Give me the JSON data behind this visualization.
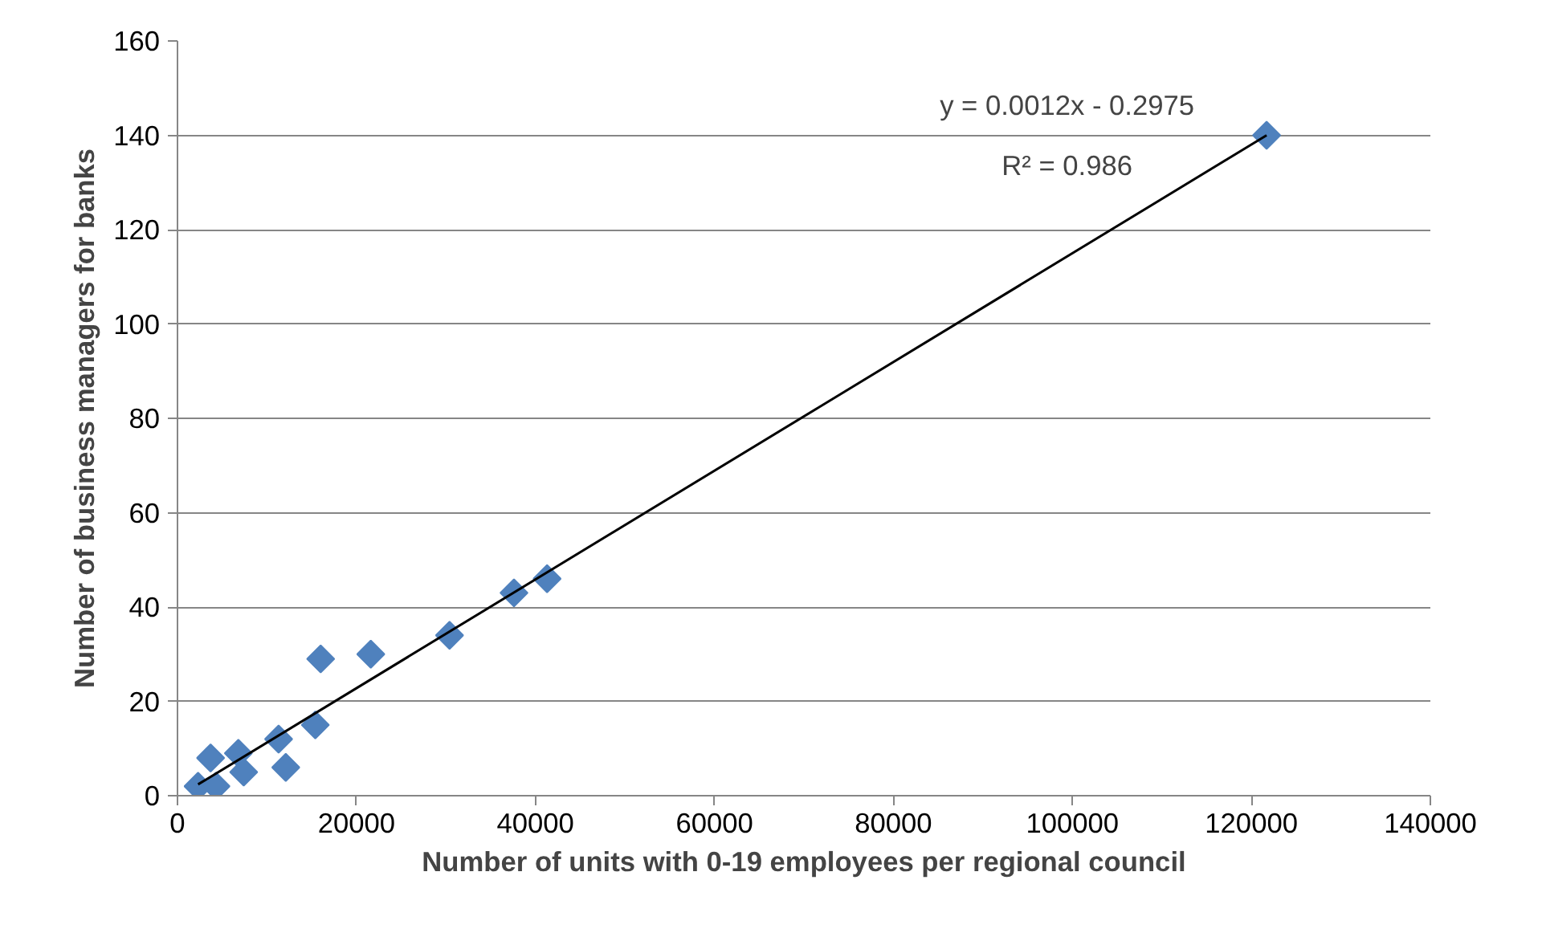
{
  "chart_data": {
    "type": "scatter",
    "xlabel": "Number of units with 0-19 employees per regional council",
    "ylabel": "Number of business managers for banks",
    "xlim": [
      0,
      140000
    ],
    "ylim": [
      0,
      160
    ],
    "xticks": [
      0,
      20000,
      40000,
      60000,
      80000,
      100000,
      120000,
      140000
    ],
    "yticks": [
      0,
      20,
      40,
      60,
      80,
      100,
      120,
      140,
      160
    ],
    "grid": "y",
    "series": [
      {
        "marker": "diamond",
        "color": "#4f81bd",
        "x": [
          2300,
          4300,
          3700,
          6800,
          7400,
          11300,
          12100,
          15400,
          16000,
          21600,
          30400,
          37600,
          41300,
          121700
        ],
        "values": [
          2,
          2,
          8,
          9,
          5,
          12,
          6,
          15,
          29,
          30,
          34,
          43,
          46,
          140
        ]
      },
      {
        "type": "line",
        "marker": "none",
        "color": "#000000",
        "x": [
          2300,
          121700
        ],
        "values": [
          2.4,
          140
        ]
      }
    ],
    "annotations": [
      "y = 0.0012x - 0.2975",
      "R² = 0.986"
    ]
  }
}
